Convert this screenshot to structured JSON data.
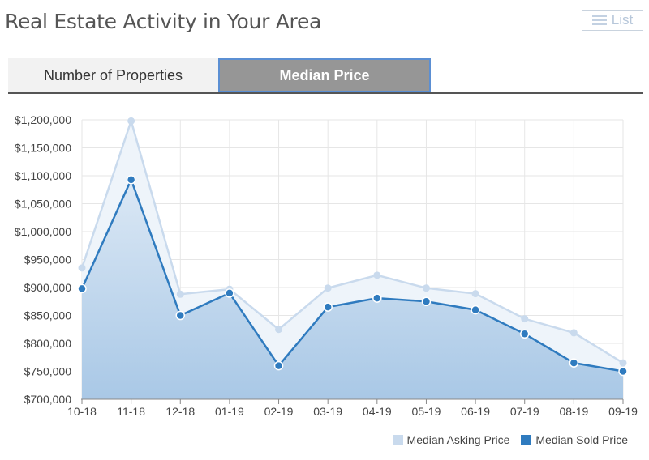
{
  "header": {
    "title": "Real Estate Activity in Your Area",
    "list_label": "List"
  },
  "tabs": [
    {
      "label": "Number of Properties",
      "active": false
    },
    {
      "label": "Median Price",
      "active": true
    }
  ],
  "colors": {
    "asking": "#c9daed",
    "sold": "#2f7bbf"
  },
  "chart_data": {
    "type": "area",
    "categories": [
      "10-18",
      "11-18",
      "12-18",
      "01-19",
      "02-19",
      "03-19",
      "04-19",
      "05-19",
      "06-19",
      "07-19",
      "08-19",
      "09-19"
    ],
    "series": [
      {
        "name": "Median Asking Price",
        "values": [
          935000,
          1198000,
          888000,
          897000,
          825000,
          899000,
          922000,
          899000,
          889000,
          844000,
          819000,
          765000
        ]
      },
      {
        "name": "Median Sold Price",
        "values": [
          898000,
          1093000,
          850000,
          890000,
          760000,
          865000,
          881000,
          875000,
          860000,
          817000,
          765000,
          750000
        ]
      }
    ],
    "ylim": [
      700000,
      1200000
    ],
    "yticks": [
      "$700,000",
      "$750,000",
      "$800,000",
      "$850,000",
      "$900,000",
      "$950,000",
      "$1,000,000",
      "$1,050,000",
      "$1,100,000",
      "$1,150,000",
      "$1,200,000"
    ],
    "grid": true,
    "legend_position": "bottom-right"
  }
}
